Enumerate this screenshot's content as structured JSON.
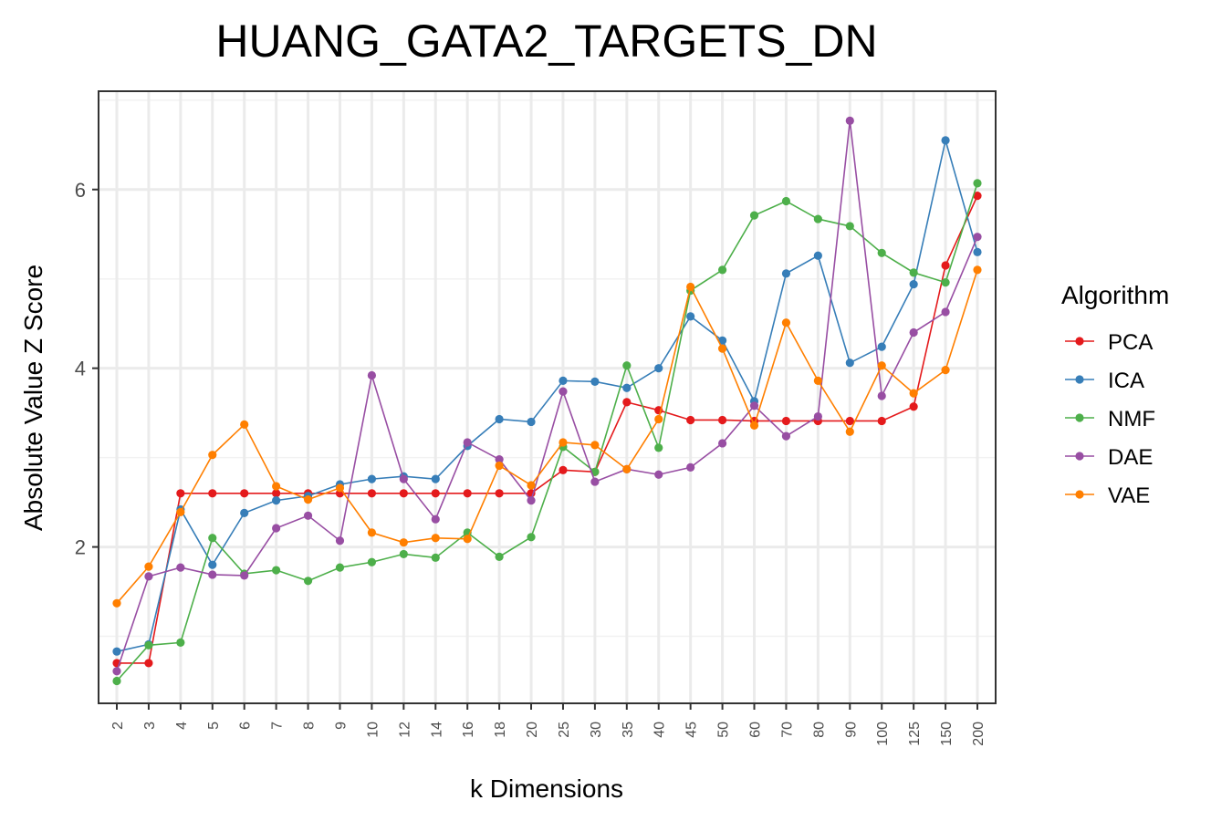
{
  "chart_data": {
    "type": "line",
    "title": "HUANG_GATA2_TARGETS_DN",
    "xlabel": "k Dimensions",
    "ylabel": "Absolute Value Z Score",
    "ylim": [
      0.25,
      7.1
    ],
    "yticks": [
      2,
      4,
      6
    ],
    "grid": true,
    "legend_title": "Algorithm",
    "legend_position": "right",
    "categories": [
      "2",
      "3",
      "4",
      "5",
      "6",
      "7",
      "8",
      "9",
      "10",
      "12",
      "14",
      "16",
      "18",
      "20",
      "25",
      "30",
      "35",
      "40",
      "45",
      "50",
      "60",
      "70",
      "80",
      "90",
      "100",
      "125",
      "150",
      "200"
    ],
    "series": [
      {
        "name": "PCA",
        "color": "#E41A1C",
        "values": [
          0.7,
          0.7,
          2.6,
          2.6,
          2.6,
          2.6,
          2.6,
          2.6,
          2.6,
          2.6,
          2.6,
          2.6,
          2.6,
          2.6,
          2.86,
          2.84,
          3.62,
          3.53,
          3.42,
          3.42,
          3.41,
          3.41,
          3.41,
          3.41,
          3.41,
          3.57,
          5.15,
          5.93
        ]
      },
      {
        "name": "ICA",
        "color": "#377EB8",
        "values": [
          0.83,
          0.91,
          2.42,
          1.8,
          2.38,
          2.52,
          2.57,
          2.7,
          2.76,
          2.79,
          2.76,
          3.13,
          3.43,
          3.4,
          3.86,
          3.85,
          3.78,
          4.0,
          4.58,
          4.31,
          3.63,
          5.06,
          5.26,
          4.06,
          4.24,
          4.94,
          6.55,
          5.3
        ]
      },
      {
        "name": "NMF",
        "color": "#4DAF4A",
        "values": [
          0.5,
          0.9,
          0.93,
          2.1,
          1.7,
          1.74,
          1.62,
          1.77,
          1.83,
          1.92,
          1.88,
          2.16,
          1.89,
          2.11,
          3.12,
          2.84,
          4.03,
          3.11,
          4.87,
          5.1,
          5.71,
          5.87,
          5.67,
          5.59,
          5.29,
          5.07,
          4.96,
          6.07
        ]
      },
      {
        "name": "DAE",
        "color": "#984EA3",
        "values": [
          0.61,
          1.67,
          1.77,
          1.69,
          1.68,
          2.21,
          2.35,
          2.07,
          3.92,
          2.76,
          2.31,
          3.17,
          2.98,
          2.52,
          3.74,
          2.73,
          2.87,
          2.81,
          2.89,
          3.16,
          3.58,
          3.24,
          3.46,
          6.77,
          3.69,
          4.4,
          4.63,
          5.47
        ]
      },
      {
        "name": "VAE",
        "color": "#FF7F00",
        "values": [
          1.37,
          1.78,
          2.39,
          3.03,
          3.37,
          2.68,
          2.53,
          2.66,
          2.16,
          2.05,
          2.1,
          2.09,
          2.91,
          2.69,
          3.17,
          3.14,
          2.87,
          3.43,
          4.91,
          4.22,
          3.36,
          4.51,
          3.86,
          3.29,
          4.03,
          3.72,
          3.98,
          5.1
        ]
      }
    ]
  }
}
